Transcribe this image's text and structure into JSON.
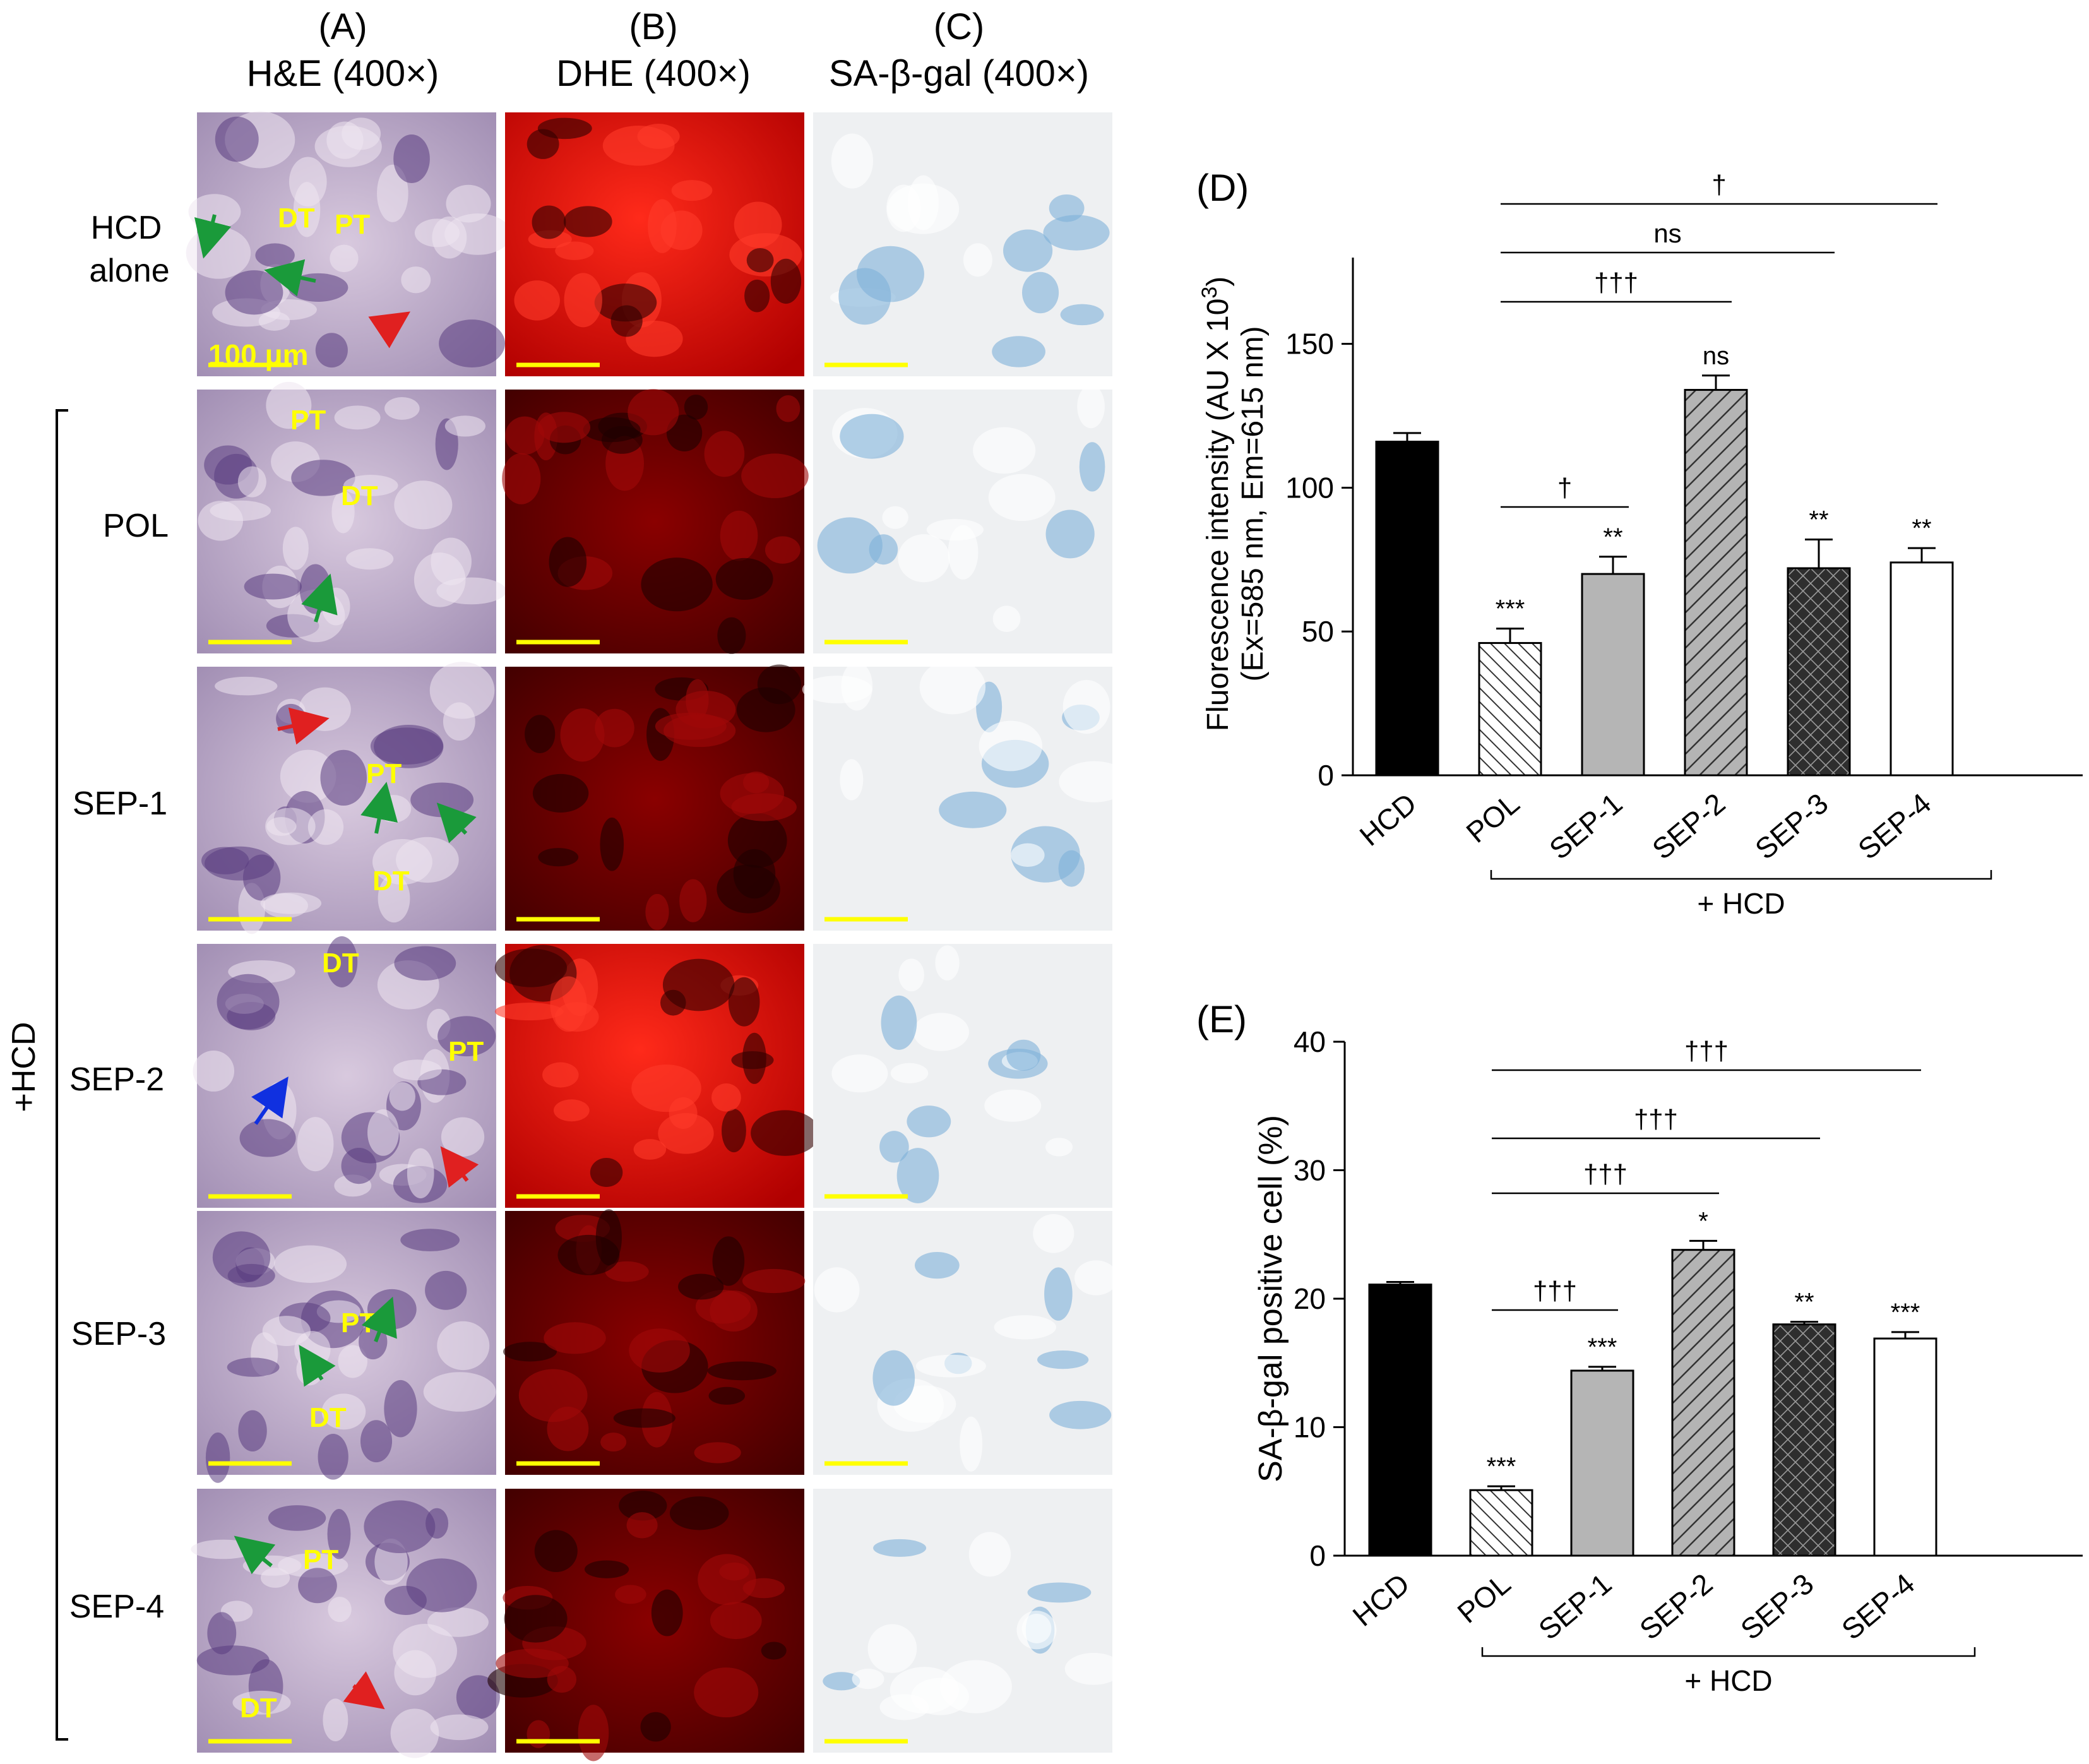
{
  "columns": [
    {
      "letter": "(A)",
      "stain": "H&E (400×)"
    },
    {
      "letter": "(B)",
      "stain": "DHE (400×)"
    },
    {
      "letter": "(C)",
      "stain": "SA-β-gal (400×)"
    }
  ],
  "rows": [
    {
      "label_line1": "HCD",
      "label_line2": "alone"
    },
    {
      "label_line1": "POL",
      "label_line2": ""
    },
    {
      "label_line1": "SEP-1",
      "label_line2": ""
    },
    {
      "label_line1": "SEP-2",
      "label_line2": ""
    },
    {
      "label_line1": "SEP-3",
      "label_line2": ""
    },
    {
      "label_line1": "SEP-4",
      "label_line2": ""
    }
  ],
  "group_label": "+HCD",
  "scale_bar_label": "100 μm",
  "he_annotations": [
    [
      "DT",
      "PT"
    ],
    [
      "PT",
      "DT"
    ],
    [
      "PT",
      "DT"
    ],
    [
      "DT",
      "PT"
    ],
    [
      "PT",
      "DT"
    ],
    [
      "PT",
      "DT"
    ]
  ],
  "colors": {
    "he_bg": "#c9b8d2",
    "dhe_bright": "#f01010",
    "dhe_dark": "#6a0000",
    "sagal_bg": "#eef0f2",
    "sagal_blue": "#7fb0d8",
    "annotation": "#ffff00",
    "arrow_green": "#1a9a3a",
    "arrow_red": "#e02020",
    "arrow_blue": "#1030e0"
  },
  "chart_data": [
    {
      "panel": "(D)",
      "type": "bar",
      "categories": [
        "HCD",
        "POL",
        "SEP-1",
        "SEP-2",
        "SEP-3",
        "SEP-4"
      ],
      "values": [
        116,
        46,
        70,
        134,
        72,
        74
      ],
      "errors": [
        3,
        5,
        6,
        5,
        10,
        5
      ],
      "stars": [
        "",
        "***",
        "**",
        "ns",
        "**",
        "**"
      ],
      "fills": [
        "solid-black",
        "hatch-back",
        "solid-gray",
        "hatch-forward",
        "crosshatch",
        "white"
      ],
      "ylabel_line1": "Fluorescence intensity (AU X 10",
      "ylabel_sup": "3",
      "ylabel_line1_end": ")",
      "ylabel_line2": "(Ex=585 nm, Em=615 nm)",
      "ylim": [
        0,
        180
      ],
      "yticks": [
        0,
        50,
        100,
        150
      ],
      "group_bracket_label": "+ HCD",
      "comparisons": [
        {
          "from": 1,
          "to": 5,
          "label": "†"
        },
        {
          "from": 1,
          "to": 4,
          "label": "ns"
        },
        {
          "from": 1,
          "to": 3,
          "label": "†††"
        },
        {
          "from": 1,
          "to": 2,
          "label": "†"
        }
      ]
    },
    {
      "panel": "(E)",
      "type": "bar",
      "categories": [
        "HCD",
        "POL",
        "SEP-1",
        "SEP-2",
        "SEP-3",
        "SEP-4"
      ],
      "values": [
        21.1,
        5.1,
        14.4,
        23.8,
        18.0,
        16.9
      ],
      "errors": [
        0.2,
        0.3,
        0.3,
        0.7,
        0.2,
        0.5
      ],
      "stars": [
        "",
        "***",
        "***",
        "*",
        "**",
        "***"
      ],
      "fills": [
        "solid-black",
        "hatch-back",
        "solid-gray",
        "hatch-forward",
        "crosshatch",
        "white"
      ],
      "ylabel": "SA-β-gal positive cell (%)",
      "ylim": [
        0,
        40
      ],
      "yticks": [
        0,
        10,
        20,
        30,
        40
      ],
      "group_bracket_label": "+ HCD",
      "comparisons": [
        {
          "from": 1,
          "to": 5,
          "label": "†††"
        },
        {
          "from": 1,
          "to": 4,
          "label": "†††"
        },
        {
          "from": 1,
          "to": 3,
          "label": "†††"
        },
        {
          "from": 1,
          "to": 2,
          "label": "†††"
        }
      ]
    }
  ]
}
